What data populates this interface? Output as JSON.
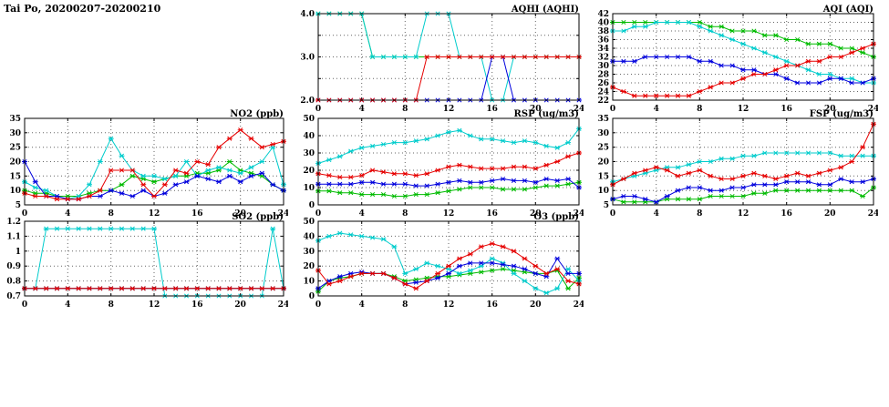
{
  "title": "Tai Po, 20200207-20200210",
  "colors": {
    "red": "#e60000",
    "blue": "#0000dd",
    "green": "#00bb00",
    "cyan": "#00cccc"
  },
  "chart_data": [
    {
      "id": "aqhi",
      "type": "line",
      "title": "AQHI (AQHI)",
      "xlim": [
        0,
        24
      ],
      "ylim": [
        2,
        4
      ],
      "x_start": 0,
      "x_step": 1,
      "xticks": [
        0,
        4,
        8,
        12,
        16,
        20,
        24
      ],
      "yticks": [
        2,
        2.5,
        3,
        3.5,
        4
      ],
      "ytick_labels": [
        "2.0",
        "",
        "3.0",
        "",
        "4.0"
      ],
      "grid": true,
      "legend": "none",
      "series": [
        {
          "name": "green",
          "color": "#00bb00",
          "values": [
            4,
            4,
            4,
            4,
            4,
            3,
            3,
            3,
            3,
            3,
            3,
            3,
            3,
            3,
            3,
            3,
            3,
            3,
            3,
            3,
            3,
            3,
            3,
            3,
            3
          ]
        },
        {
          "name": "cyan",
          "color": "#00cccc",
          "values": [
            4,
            4,
            4,
            4,
            4,
            3,
            3,
            3,
            3,
            3,
            4,
            4,
            4,
            3,
            3,
            3,
            2,
            2,
            3,
            3,
            3,
            3,
            3,
            3,
            3
          ]
        },
        {
          "name": "blue",
          "color": "#0000dd",
          "values": [
            2,
            2,
            2,
            2,
            2,
            2,
            2,
            2,
            2,
            2,
            2,
            2,
            2,
            2,
            2,
            2,
            3,
            3,
            2,
            2,
            2,
            2,
            2,
            2,
            2
          ]
        },
        {
          "name": "red",
          "color": "#e60000",
          "values": [
            2,
            2,
            2,
            2,
            2,
            2,
            2,
            2,
            2,
            2,
            3,
            3,
            3,
            3,
            3,
            3,
            3,
            3,
            3,
            3,
            3,
            3,
            3,
            3,
            3
          ]
        }
      ]
    },
    {
      "id": "aqi",
      "type": "line",
      "title": "AQI (AQI)",
      "xlim": [
        0,
        24
      ],
      "ylim": [
        22,
        42
      ],
      "x_start": 0,
      "x_step": 1,
      "xticks": [
        0,
        4,
        8,
        12,
        16,
        20,
        24
      ],
      "yticks": [
        22,
        24,
        26,
        28,
        30,
        32,
        34,
        36,
        38,
        40,
        42
      ],
      "ytick_labels": [
        "22",
        "24",
        "26",
        "28",
        "30",
        "32",
        "34",
        "36",
        "38",
        "40",
        "42"
      ],
      "grid": true,
      "legend": "none",
      "series": [
        {
          "name": "green",
          "color": "#00bb00",
          "values": [
            40,
            40,
            40,
            40,
            40,
            40,
            40,
            40,
            40,
            39,
            39,
            38,
            38,
            38,
            37,
            37,
            36,
            36,
            35,
            35,
            35,
            34,
            34,
            33,
            32
          ]
        },
        {
          "name": "cyan",
          "color": "#00cccc",
          "values": [
            38,
            38,
            39,
            39,
            40,
            40,
            40,
            40,
            39,
            38,
            37,
            36,
            35,
            34,
            33,
            32,
            31,
            30,
            29,
            28,
            28,
            27,
            27,
            26,
            26
          ]
        },
        {
          "name": "blue",
          "color": "#0000dd",
          "values": [
            31,
            31,
            31,
            32,
            32,
            32,
            32,
            32,
            31,
            31,
            30,
            30,
            29,
            29,
            28,
            28,
            27,
            26,
            26,
            26,
            27,
            27,
            26,
            26,
            27
          ]
        },
        {
          "name": "red",
          "color": "#e60000",
          "values": [
            25,
            24,
            23,
            23,
            23,
            23,
            23,
            23,
            24,
            25,
            26,
            26,
            27,
            28,
            28,
            29,
            30,
            30,
            31,
            31,
            32,
            32,
            33,
            34,
            35
          ]
        }
      ]
    },
    {
      "id": "no2",
      "type": "line",
      "title": "NO2 (ppb)",
      "xlim": [
        0,
        24
      ],
      "ylim": [
        5,
        35
      ],
      "x_start": 0,
      "x_step": 1,
      "xticks": [
        0,
        4,
        8,
        12,
        16,
        20,
        24
      ],
      "yticks": [
        5,
        10,
        15,
        20,
        25,
        30,
        35
      ],
      "ytick_labels": [
        "5",
        "10",
        "15",
        "20",
        "25",
        "30",
        "35"
      ],
      "grid": true,
      "legend": "none",
      "series": [
        {
          "name": "green",
          "color": "#00bb00",
          "values": [
            10,
            9,
            9,
            8,
            8,
            8,
            9,
            10,
            10,
            12,
            15,
            14,
            13,
            14,
            15,
            15,
            16,
            16,
            17,
            20,
            17,
            16,
            15,
            12,
            10
          ]
        },
        {
          "name": "cyan",
          "color": "#00cccc",
          "values": [
            13,
            11,
            10,
            8,
            7,
            8,
            12,
            20,
            28,
            22,
            17,
            15,
            15,
            14,
            15,
            20,
            15,
            17,
            18,
            17,
            16,
            18,
            20,
            25,
            12
          ]
        },
        {
          "name": "blue",
          "color": "#0000dd",
          "values": [
            20,
            13,
            8,
            8,
            7,
            7,
            8,
            8,
            10,
            9,
            8,
            10,
            8,
            9,
            12,
            13,
            15,
            14,
            13,
            15,
            13,
            15,
            16,
            12,
            10
          ]
        },
        {
          "name": "red",
          "color": "#e60000",
          "values": [
            9,
            8,
            8,
            7,
            7,
            7,
            8,
            10,
            17,
            17,
            17,
            12,
            8,
            12,
            17,
            16,
            20,
            19,
            25,
            28,
            31,
            28,
            25,
            26,
            27
          ]
        }
      ]
    },
    {
      "id": "rsp",
      "type": "line",
      "title": "RSP (ug/m3)",
      "xlim": [
        0,
        24
      ],
      "ylim": [
        0,
        50
      ],
      "x_start": 0,
      "x_step": 1,
      "xticks": [
        0,
        4,
        8,
        12,
        16,
        20,
        24
      ],
      "yticks": [
        0,
        10,
        20,
        30,
        40,
        50
      ],
      "ytick_labels": [
        "0",
        "10",
        "20",
        "30",
        "40",
        "50"
      ],
      "grid": true,
      "legend": "none",
      "series": [
        {
          "name": "green",
          "color": "#00bb00",
          "values": [
            8,
            8,
            7,
            7,
            6,
            6,
            6,
            5,
            5,
            6,
            6,
            7,
            8,
            9,
            10,
            10,
            10,
            9,
            9,
            9,
            10,
            11,
            11,
            12,
            13
          ]
        },
        {
          "name": "cyan",
          "color": "#00cccc",
          "values": [
            24,
            26,
            28,
            31,
            33,
            34,
            35,
            36,
            36,
            37,
            38,
            40,
            42,
            43,
            40,
            38,
            38,
            37,
            36,
            37,
            36,
            34,
            33,
            36,
            44
          ]
        },
        {
          "name": "blue",
          "color": "#0000dd",
          "values": [
            12,
            12,
            12,
            12,
            13,
            13,
            12,
            12,
            12,
            11,
            11,
            12,
            13,
            14,
            13,
            13,
            14,
            15,
            14,
            14,
            13,
            15,
            14,
            15,
            10
          ]
        },
        {
          "name": "red",
          "color": "#e60000",
          "values": [
            18,
            17,
            16,
            16,
            17,
            20,
            19,
            18,
            18,
            17,
            18,
            20,
            22,
            23,
            22,
            21,
            21,
            21,
            22,
            22,
            21,
            23,
            25,
            28,
            30
          ]
        }
      ]
    },
    {
      "id": "fsp",
      "type": "line",
      "title": "FSP (ug/m3)",
      "xlim": [
        0,
        24
      ],
      "ylim": [
        5,
        35
      ],
      "x_start": 0,
      "x_step": 1,
      "xticks": [
        0,
        4,
        8,
        12,
        16,
        20,
        24
      ],
      "yticks": [
        5,
        10,
        15,
        20,
        25,
        30,
        35
      ],
      "ytick_labels": [
        "5",
        "10",
        "15",
        "20",
        "25",
        "30",
        "35"
      ],
      "grid": true,
      "legend": "none",
      "series": [
        {
          "name": "green",
          "color": "#00bb00",
          "values": [
            7,
            6,
            6,
            6,
            6,
            7,
            7,
            7,
            7,
            8,
            8,
            8,
            8,
            9,
            9,
            10,
            10,
            10,
            10,
            10,
            10,
            10,
            10,
            8,
            11
          ]
        },
        {
          "name": "cyan",
          "color": "#00cccc",
          "values": [
            13,
            14,
            15,
            16,
            17,
            18,
            18,
            19,
            20,
            20,
            21,
            21,
            22,
            22,
            23,
            23,
            23,
            23,
            23,
            23,
            23,
            22,
            22,
            22,
            22
          ]
        },
        {
          "name": "blue",
          "color": "#0000dd",
          "values": [
            7,
            8,
            8,
            7,
            6,
            8,
            10,
            11,
            11,
            10,
            10,
            11,
            11,
            12,
            12,
            12,
            13,
            13,
            13,
            12,
            12,
            14,
            13,
            13,
            14
          ]
        },
        {
          "name": "red",
          "color": "#e60000",
          "values": [
            12,
            14,
            16,
            17,
            18,
            17,
            15,
            16,
            17,
            15,
            14,
            14,
            15,
            16,
            15,
            14,
            15,
            16,
            15,
            16,
            17,
            18,
            20,
            25,
            33
          ]
        }
      ]
    },
    {
      "id": "so2",
      "type": "line",
      "title": "SO2 (ppb)",
      "xlim": [
        0,
        24
      ],
      "ylim": [
        0.7,
        1.2
      ],
      "x_start": 0,
      "x_step": 1,
      "xticks": [
        0,
        4,
        8,
        12,
        16,
        20,
        24
      ],
      "yticks": [
        0.7,
        0.8,
        0.9,
        1.0,
        1.1,
        1.2
      ],
      "ytick_labels": [
        "0.7",
        "0.8",
        "0.9",
        "1",
        "1.1",
        "1.2"
      ],
      "grid": true,
      "legend": "none",
      "series": [
        {
          "name": "green",
          "color": "#00bb00",
          "values": [
            0.75,
            0.75,
            0.75,
            0.75,
            0.75,
            0.75,
            0.75,
            0.75,
            0.75,
            0.75,
            0.75,
            0.75,
            0.75,
            0.75,
            0.75,
            0.75,
            0.75,
            0.75,
            0.75,
            0.75,
            0.75,
            0.75,
            0.75,
            0.75,
            0.75
          ]
        },
        {
          "name": "cyan",
          "color": "#00cccc",
          "values": [
            0.75,
            0.75,
            1.15,
            1.15,
            1.15,
            1.15,
            1.15,
            1.15,
            1.15,
            1.15,
            1.15,
            1.15,
            1.15,
            0.7,
            0.7,
            0.7,
            0.7,
            0.7,
            0.7,
            0.7,
            0.7,
            0.7,
            0.7,
            1.15,
            0.75
          ]
        },
        {
          "name": "blue",
          "color": "#0000dd",
          "values": [
            0.75,
            0.75,
            0.75,
            0.75,
            0.75,
            0.75,
            0.75,
            0.75,
            0.75,
            0.75,
            0.75,
            0.75,
            0.75,
            0.75,
            0.75,
            0.75,
            0.75,
            0.75,
            0.75,
            0.75,
            0.75,
            0.75,
            0.75,
            0.75,
            0.75
          ]
        },
        {
          "name": "red",
          "color": "#e60000",
          "values": [
            0.75,
            0.75,
            0.75,
            0.75,
            0.75,
            0.75,
            0.75,
            0.75,
            0.75,
            0.75,
            0.75,
            0.75,
            0.75,
            0.75,
            0.75,
            0.75,
            0.75,
            0.75,
            0.75,
            0.75,
            0.75,
            0.75,
            0.75,
            0.75,
            0.75
          ]
        }
      ]
    },
    {
      "id": "o3",
      "type": "line",
      "title": "O3 (ppb)",
      "xlim": [
        0,
        24
      ],
      "ylim": [
        0,
        50
      ],
      "x_start": 0,
      "x_step": 1,
      "xticks": [
        0,
        4,
        8,
        12,
        16,
        20,
        24
      ],
      "yticks": [
        0,
        10,
        20,
        30,
        40,
        50
      ],
      "ytick_labels": [
        "0",
        "10",
        "20",
        "30",
        "40",
        "50"
      ],
      "grid": true,
      "legend": "none",
      "series": [
        {
          "name": "green",
          "color": "#00bb00",
          "values": [
            3,
            10,
            12,
            13,
            15,
            15,
            15,
            13,
            10,
            11,
            12,
            13,
            13,
            14,
            15,
            16,
            17,
            18,
            17,
            16,
            15,
            15,
            17,
            5,
            12
          ]
        },
        {
          "name": "cyan",
          "color": "#00cccc",
          "values": [
            37,
            40,
            42,
            41,
            40,
            39,
            38,
            33,
            15,
            18,
            22,
            20,
            18,
            15,
            17,
            20,
            25,
            22,
            15,
            10,
            5,
            2,
            5,
            18,
            10
          ]
        },
        {
          "name": "blue",
          "color": "#0000dd",
          "values": [
            5,
            10,
            13,
            15,
            16,
            15,
            15,
            12,
            8,
            9,
            10,
            12,
            15,
            20,
            22,
            22,
            22,
            21,
            20,
            18,
            15,
            13,
            25,
            15,
            15
          ]
        },
        {
          "name": "red",
          "color": "#e60000",
          "values": [
            17,
            8,
            10,
            13,
            15,
            15,
            15,
            12,
            8,
            5,
            10,
            15,
            20,
            25,
            28,
            33,
            35,
            33,
            30,
            25,
            20,
            15,
            18,
            10,
            8
          ]
        }
      ]
    }
  ]
}
